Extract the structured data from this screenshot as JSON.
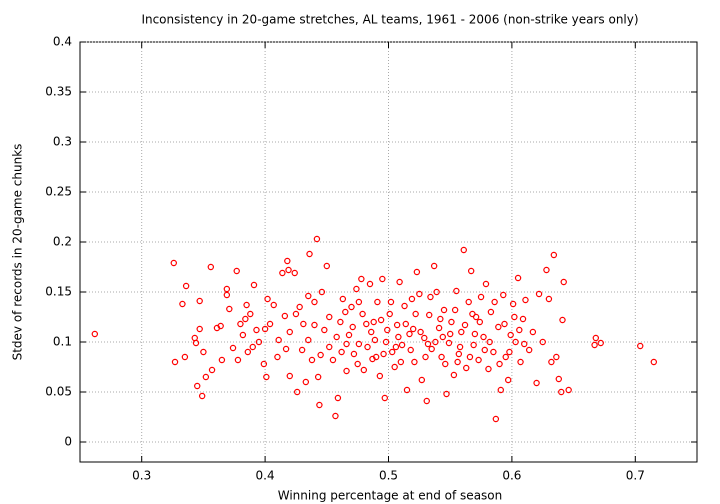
{
  "chart_data": {
    "type": "scatter",
    "title": "Inconsistency in 20-game stretches, AL teams, 1961 - 2006 (non-strike years only)",
    "xlabel": "Winning percentage at end of season",
    "ylabel": "Stdev of records in 20-game chunks",
    "color": "#ff0000",
    "grid": true,
    "xlim": [
      0.25,
      0.75
    ],
    "ylim": [
      -0.02,
      0.4
    ],
    "xticks": [
      0.3,
      0.4,
      0.5,
      0.6,
      0.7
    ],
    "yticks": [
      0,
      0.05,
      0.1,
      0.15,
      0.2,
      0.25,
      0.3,
      0.35,
      0.4
    ],
    "x": [
      0.262,
      0.326,
      0.327,
      0.333,
      0.336,
      0.335,
      0.343,
      0.344,
      0.345,
      0.347,
      0.347,
      0.349,
      0.35,
      0.352,
      0.356,
      0.357,
      0.361,
      0.364,
      0.365,
      0.369,
      0.369,
      0.371,
      0.374,
      0.377,
      0.378,
      0.382,
      0.384,
      0.385,
      0.386,
      0.388,
      0.391,
      0.393,
      0.395,
      0.399,
      0.401,
      0.402,
      0.404,
      0.407,
      0.411,
      0.414,
      0.416,
      0.417,
      0.418,
      0.419,
      0.42,
      0.424,
      0.426,
      0.428,
      0.431,
      0.433,
      0.435,
      0.436,
      0.438,
      0.44,
      0.442,
      0.443,
      0.444,
      0.446,
      0.448,
      0.45,
      0.452,
      0.455,
      0.457,
      0.459,
      0.461,
      0.463,
      0.466,
      0.468,
      0.47,
      0.472,
      0.474,
      0.476,
      0.478,
      0.48,
      0.482,
      0.485,
      0.487,
      0.489,
      0.491,
      0.493,
      0.495,
      0.497,
      0.499,
      0.501,
      0.503,
      0.505,
      0.507,
      0.509,
      0.511,
      0.513,
      0.515,
      0.517,
      0.519,
      0.521,
      0.523,
      0.525,
      0.527,
      0.529,
      0.531,
      0.533,
      0.535,
      0.537,
      0.539,
      0.541,
      0.543,
      0.545,
      0.547,
      0.549,
      0.551,
      0.553,
      0.555,
      0.557,
      0.559,
      0.561,
      0.563,
      0.565,
      0.567,
      0.569,
      0.571,
      0.573,
      0.575,
      0.577,
      0.579,
      0.581,
      0.583,
      0.585,
      0.587,
      0.589,
      0.591,
      0.593,
      0.595,
      0.597,
      0.599,
      0.601,
      0.603,
      0.605,
      0.607,
      0.609,
      0.611,
      0.614,
      0.617,
      0.62,
      0.622,
      0.625,
      0.628,
      0.63,
      0.632,
      0.634,
      0.636,
      0.638,
      0.64,
      0.641,
      0.642,
      0.646,
      0.667,
      0.668,
      0.672,
      0.704,
      0.715,
      0.452,
      0.458,
      0.462,
      0.465,
      0.471,
      0.475,
      0.479,
      0.483,
      0.486,
      0.49,
      0.494,
      0.498,
      0.502,
      0.506,
      0.51,
      0.514,
      0.518,
      0.522,
      0.526,
      0.53,
      0.534,
      0.538,
      0.542,
      0.546,
      0.55,
      0.554,
      0.558,
      0.562,
      0.566,
      0.57,
      0.574,
      0.578,
      0.582,
      0.586,
      0.59,
      0.594,
      0.598,
      0.602,
      0.606,
      0.61,
      0.466,
      0.476,
      0.488,
      0.496,
      0.508,
      0.52,
      0.532,
      0.544,
      0.556,
      0.568,
      0.42,
      0.43,
      0.44,
      0.41,
      0.4,
      0.39,
      0.38,
      0.425,
      0.435,
      0.445
    ],
    "values": [
      0.108,
      0.179,
      0.08,
      0.138,
      0.156,
      0.085,
      0.104,
      0.099,
      0.056,
      0.113,
      0.141,
      0.046,
      0.09,
      0.065,
      0.175,
      0.072,
      0.114,
      0.116,
      0.082,
      0.153,
      0.147,
      0.133,
      0.094,
      0.171,
      0.082,
      0.107,
      0.123,
      0.137,
      0.09,
      0.128,
      0.157,
      0.112,
      0.1,
      0.078,
      0.065,
      0.143,
      0.118,
      0.137,
      0.102,
      0.169,
      0.126,
      0.093,
      0.181,
      0.172,
      0.066,
      0.169,
      0.05,
      0.135,
      0.118,
      0.06,
      0.146,
      0.188,
      0.082,
      0.14,
      0.203,
      0.065,
      0.037,
      0.15,
      0.112,
      0.176,
      0.095,
      0.082,
      0.026,
      0.044,
      0.12,
      0.143,
      0.071,
      0.107,
      0.135,
      0.088,
      0.153,
      0.098,
      0.163,
      0.072,
      0.118,
      0.158,
      0.083,
      0.102,
      0.14,
      0.066,
      0.163,
      0.044,
      0.112,
      0.128,
      0.09,
      0.075,
      0.117,
      0.16,
      0.097,
      0.136,
      0.052,
      0.108,
      0.143,
      0.08,
      0.17,
      0.148,
      0.062,
      0.104,
      0.041,
      0.127,
      0.093,
      0.176,
      0.15,
      0.114,
      0.085,
      0.132,
      0.048,
      0.099,
      0.12,
      0.067,
      0.151,
      0.088,
      0.11,
      0.192,
      0.074,
      0.14,
      0.171,
      0.097,
      0.125,
      0.082,
      0.145,
      0.105,
      0.158,
      0.073,
      0.13,
      0.09,
      0.023,
      0.115,
      0.052,
      0.147,
      0.085,
      0.062,
      0.107,
      0.138,
      0.1,
      0.164,
      0.08,
      0.123,
      0.142,
      0.092,
      0.11,
      0.059,
      0.148,
      0.1,
      0.172,
      0.143,
      0.08,
      0.187,
      0.085,
      0.063,
      0.05,
      0.122,
      0.16,
      0.052,
      0.097,
      0.104,
      0.099,
      0.096,
      0.08,
      0.125,
      0.105,
      0.09,
      0.13,
      0.115,
      0.078,
      0.128,
      0.095,
      0.11,
      0.085,
      0.122,
      0.1,
      0.14,
      0.095,
      0.08,
      0.118,
      0.092,
      0.128,
      0.11,
      0.085,
      0.145,
      0.1,
      0.123,
      0.078,
      0.108,
      0.132,
      0.095,
      0.117,
      0.085,
      0.108,
      0.12,
      0.092,
      0.1,
      0.14,
      0.078,
      0.118,
      0.09,
      0.125,
      0.112,
      0.098,
      0.098,
      0.14,
      0.12,
      0.088,
      0.105,
      0.113,
      0.098,
      0.105,
      0.08,
      0.128,
      0.11,
      0.092,
      0.117,
      0.085,
      0.113,
      0.095,
      0.118,
      0.128,
      0.102,
      0.087
    ]
  }
}
